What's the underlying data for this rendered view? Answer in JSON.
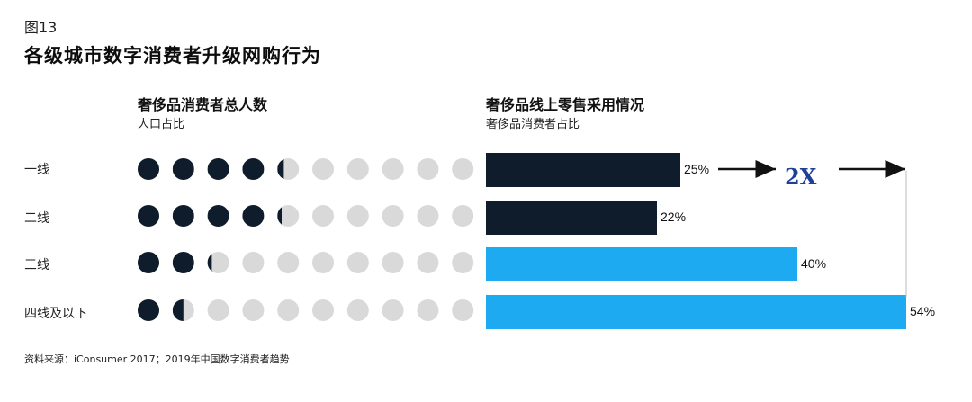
{
  "figure": {
    "label": "图13",
    "title": "各级城市数字消费者升级网购行为"
  },
  "left_panel": {
    "title": "奢侈品消费者总人数",
    "subtitle": "人口占比"
  },
  "right_panel": {
    "title": "奢侈品线上零售采用情况",
    "subtitle": "奢侈品消费者占比"
  },
  "callout": {
    "text": "2X"
  },
  "source": "资料来源：iConsumer 2017；2019年中国数字消费者趋势",
  "colors": {
    "dark": "#0f1c2b",
    "light_blue": "#1eaaf1",
    "dot_empty": "#d9d9d9",
    "dot_filled": "#0f1c2b"
  },
  "chart_data": [
    {
      "type": "bar",
      "title": "奢侈品消费者总人数",
      "ylabel": "人口占比",
      "categories": [
        "一线",
        "二线",
        "三线",
        "四线及以下"
      ],
      "values": [
        4.3,
        4.2,
        2.2,
        1.5
      ],
      "unit": "dots filled out of 10 (pictogram)",
      "total": 10
    },
    {
      "type": "bar",
      "orientation": "horizontal",
      "title": "奢侈品线上零售采用情况",
      "ylabel": "奢侈品消费者占比",
      "categories": [
        "一线",
        "二线",
        "三线",
        "四线及以下"
      ],
      "values": [
        25,
        22,
        40,
        54
      ],
      "value_labels": [
        "25%",
        "22%",
        "40%",
        "54%"
      ],
      "bar_colors": [
        "#0f1c2b",
        "#0f1c2b",
        "#1eaaf1",
        "#1eaaf1"
      ],
      "xlim": [
        0,
        54
      ]
    }
  ]
}
